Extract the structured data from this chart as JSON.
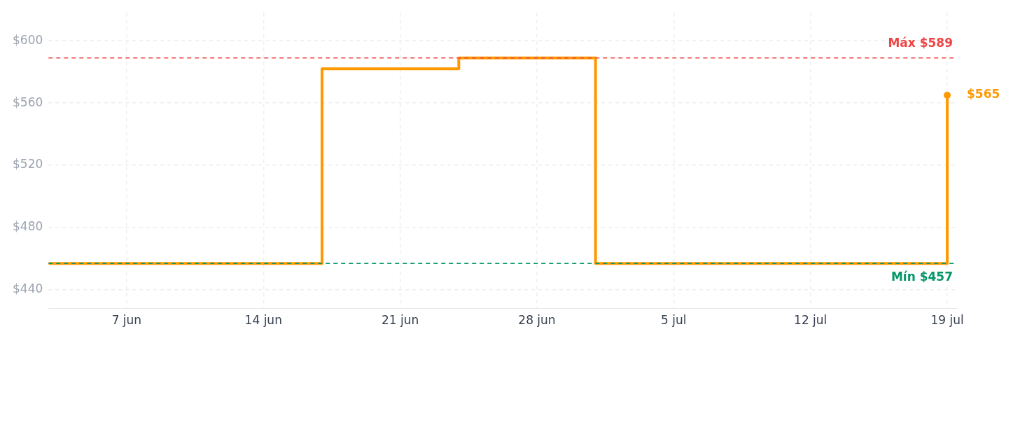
{
  "chart_data": {
    "type": "step",
    "x": [
      "--06-03",
      "--06-17",
      "--06-24",
      "--07-01",
      "--07-19"
    ],
    "series": [
      {
        "color": "#ff9900",
        "values": [
          457,
          582,
          589,
          457,
          565
        ]
      }
    ],
    "xlim": [
      "--06-03",
      "--07-19T12:00"
    ],
    "xticks": [
      {
        "value": "--06-07",
        "label": "7 jun"
      },
      {
        "value": "--06-14",
        "label": "14 jun"
      },
      {
        "value": "--06-21",
        "label": "21 jun"
      },
      {
        "value": "--06-28",
        "label": "28 jun"
      },
      {
        "value": "--07-05",
        "label": "5 jul"
      },
      {
        "value": "--07-12",
        "label": "12 jul"
      },
      {
        "value": "--07-19",
        "label": "19 jul"
      }
    ],
    "ylim": [
      428,
      618
    ],
    "yticks": [
      {
        "value": 440,
        "label": "$440"
      },
      {
        "value": 480,
        "label": "$480"
      },
      {
        "value": 520,
        "label": "$520"
      },
      {
        "value": 560,
        "label": "$560"
      },
      {
        "value": 600,
        "label": "$600"
      }
    ],
    "ref_lines": [
      {
        "axis": "y",
        "value": 589,
        "label": "Máx $589",
        "color": "#ef4444",
        "line_style": "dashed"
      },
      {
        "axis": "y",
        "value": 457,
        "label": "Mín $457",
        "color": "#059669",
        "line_style": "dashed"
      }
    ],
    "annotations": [
      {
        "text": "$565",
        "x": "--07-19",
        "y": 565
      }
    ],
    "grid": true,
    "line_style": "solid",
    "legend": false
  }
}
